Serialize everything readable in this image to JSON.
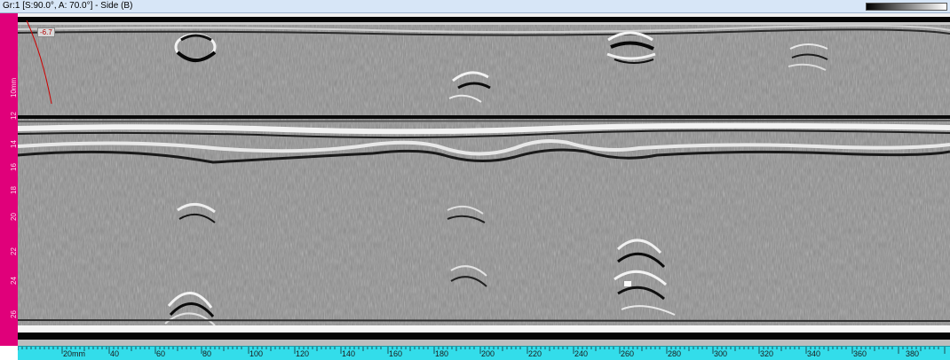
{
  "window": {
    "title": "Gr:1 [S:90.0°, A: 70.0°] - Side (B)"
  },
  "cursor_readout": "-6.7",
  "vertical_ruler": {
    "unit_label": "10mm",
    "labels": [
      "12",
      "14",
      "16",
      "18",
      "20",
      "22",
      "24",
      "26"
    ]
  },
  "horizontal_ruler": {
    "labels": [
      "20mm",
      "40",
      "60",
      "80",
      "100",
      "120",
      "140",
      "160",
      "180",
      "200",
      "220",
      "240",
      "260",
      "280",
      "300",
      "320",
      "340",
      "360",
      "380"
    ]
  },
  "colors": {
    "ruler_vertical": "#e0007a",
    "ruler_horizontal": "#33ddea",
    "cursor_line": "#cc0000",
    "scan_background": "#8e8e8e"
  }
}
